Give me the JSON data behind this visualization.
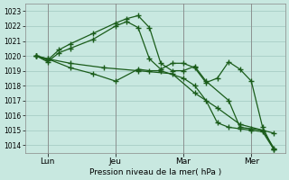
{
  "bg_color": "#c8e8e0",
  "grid_color": "#a0c8c0",
  "line_color": "#1a5c1a",
  "line_width": 0.9,
  "marker": "+",
  "marker_size": 4,
  "marker_ew": 1.0,
  "ylim": [
    1013.5,
    1023.5
  ],
  "yticks": [
    1014,
    1015,
    1016,
    1017,
    1018,
    1019,
    1020,
    1021,
    1022,
    1023
  ],
  "ytick_fontsize": 5.5,
  "xlabel": "Pression niveau de la mer( hPa )",
  "xlabel_fontsize": 6.5,
  "xtick_labels": [
    "Lun",
    "Jeu",
    "Mar",
    "Mer"
  ],
  "xtick_positions": [
    1,
    4,
    7,
    10
  ],
  "xlim": [
    0,
    11.5
  ],
  "vline_color": "#b0d0c8",
  "vlines": [
    1,
    4,
    7,
    10
  ],
  "series": [
    {
      "x": [
        0.5,
        1.0,
        1.5,
        2.0,
        3.0,
        4.0,
        4.5,
        5.0,
        5.5,
        6.0,
        6.5,
        7.0,
        7.5,
        8.0,
        9.0,
        9.5,
        10.0,
        10.5,
        11.0
      ],
      "y": [
        1020.0,
        1019.7,
        1020.4,
        1020.8,
        1021.5,
        1022.2,
        1022.5,
        1022.7,
        1021.9,
        1019.5,
        1019.0,
        1019.0,
        1019.3,
        1018.3,
        1017.0,
        1015.2,
        1015.1,
        1015.0,
        1014.8
      ]
    },
    {
      "x": [
        0.5,
        1.0,
        1.5,
        2.0,
        3.0,
        4.0,
        4.5,
        5.0,
        5.5,
        6.0,
        6.5,
        7.0,
        7.5,
        8.0,
        8.5,
        9.0,
        9.5,
        10.0,
        10.5,
        11.0
      ],
      "y": [
        1020.0,
        1019.6,
        1020.2,
        1020.5,
        1021.1,
        1022.0,
        1022.3,
        1021.9,
        1019.8,
        1019.1,
        1019.5,
        1019.5,
        1019.2,
        1018.2,
        1018.5,
        1019.6,
        1019.1,
        1018.3,
        1015.2,
        1013.7
      ]
    },
    {
      "x": [
        0.5,
        1.0,
        2.0,
        3.0,
        4.0,
        5.0,
        5.5,
        6.0,
        7.0,
        7.5,
        8.0,
        8.5,
        9.0,
        9.5,
        10.0,
        10.5,
        11.0
      ],
      "y": [
        1020.0,
        1019.8,
        1019.2,
        1018.8,
        1018.3,
        1019.1,
        1019.0,
        1019.0,
        1018.5,
        1018.0,
        1017.0,
        1015.5,
        1015.2,
        1015.1,
        1015.0,
        1014.9,
        1013.7
      ]
    },
    {
      "x": [
        0.5,
        1.0,
        2.0,
        3.5,
        5.0,
        6.5,
        7.5,
        8.5,
        9.5,
        10.5,
        11.0
      ],
      "y": [
        1020.0,
        1019.8,
        1019.5,
        1019.2,
        1019.0,
        1018.8,
        1017.5,
        1016.5,
        1015.4,
        1015.0,
        1013.8
      ]
    }
  ]
}
